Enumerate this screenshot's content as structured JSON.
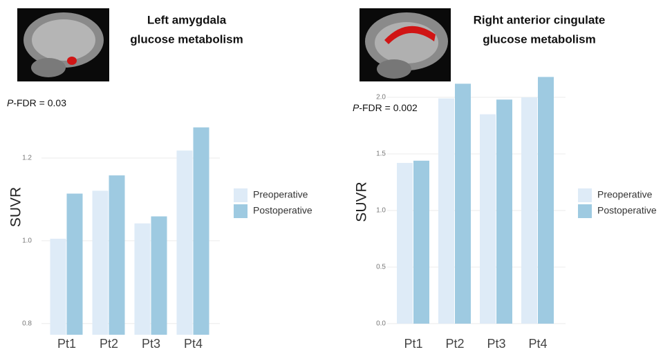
{
  "chart_data": [
    {
      "type": "bar",
      "title": [
        "Left amygdala",
        "glucose metabolism"
      ],
      "annotation": "P-FDR = 0.03",
      "y_label": "SUVR",
      "categories": [
        "Pt1",
        "Pt2",
        "Pt3",
        "Pt4"
      ],
      "series": [
        {
          "name": "Preoperative",
          "color": "#deebf7",
          "values": [
            1.005,
            1.121,
            1.042,
            1.218
          ]
        },
        {
          "name": "Postoperative",
          "color": "#9ecae1",
          "values": [
            1.114,
            1.158,
            1.059,
            1.274
          ]
        }
      ],
      "ylim": [
        0.773,
        1.39
      ],
      "yticks": [
        {
          "value": 0.8,
          "label": "0.8"
        },
        {
          "value": 1.0,
          "label": "1.0"
        },
        1.2
      ],
      "grid": true
    },
    {
      "type": "bar",
      "title": [
        "Right anterior cingulate",
        "glucose metabolism"
      ],
      "annotation": "P-FDR = 0.002",
      "y_label": "SUVR",
      "categories": [
        "Pt1",
        "Pt2",
        "Pt3",
        "Pt4"
      ],
      "series": [
        {
          "name": "Preoperative",
          "color": "#deebf7",
          "values": [
            1.42,
            1.99,
            1.85,
            2.0
          ]
        },
        {
          "name": "Postoperative",
          "color": "#9ecae1",
          "values": [
            1.44,
            2.12,
            1.98,
            2.18
          ]
        }
      ],
      "ylim": [
        -0.098,
        2.25
      ],
      "yticks": [
        {
          "value": 0,
          "label": "0.0"
        },
        0.5,
        {
          "value": 1,
          "label": "1.0"
        },
        1.5,
        {
          "value": 2,
          "label": "2.0"
        }
      ],
      "grid": true
    }
  ]
}
